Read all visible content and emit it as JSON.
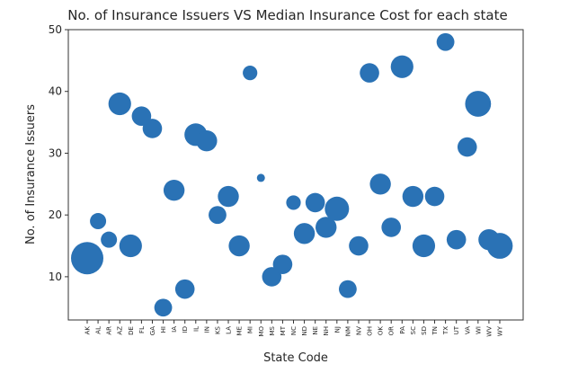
{
  "chart_data": {
    "type": "scatter",
    "title": "No. of Insurance Issuers VS Median Insurance Cost for each state",
    "xlabel": "State Code",
    "ylabel": "No. of Insurance Issuers",
    "ylim": [
      3,
      50
    ],
    "yticks": [
      10,
      20,
      30,
      40,
      50
    ],
    "grid": false,
    "color": "#2a72b5",
    "categories": [
      "AK",
      "AL",
      "AR",
      "AZ",
      "DE",
      "FL",
      "GA",
      "HI",
      "IA",
      "ID",
      "IL",
      "IN",
      "KS",
      "LA",
      "ME",
      "MI",
      "MO",
      "MS",
      "MT",
      "NC",
      "ND",
      "NE",
      "NH",
      "NJ",
      "NM",
      "NV",
      "OH",
      "OK",
      "OR",
      "PA",
      "SC",
      "SD",
      "TN",
      "TX",
      "UT",
      "VA",
      "WI",
      "WV",
      "WY"
    ],
    "points": [
      {
        "x": "AK",
        "y": 13,
        "size": 1.0
      },
      {
        "x": "AL",
        "y": 19,
        "size": 0.5
      },
      {
        "x": "AR",
        "y": 16,
        "size": 0.5
      },
      {
        "x": "AZ",
        "y": 38,
        "size": 0.7
      },
      {
        "x": "DE",
        "y": 15,
        "size": 0.7
      },
      {
        "x": "FL",
        "y": 36,
        "size": 0.6
      },
      {
        "x": "GA",
        "y": 34,
        "size": 0.6
      },
      {
        "x": "HI",
        "y": 5,
        "size": 0.55
      },
      {
        "x": "IA",
        "y": 24,
        "size": 0.65
      },
      {
        "x": "ID",
        "y": 8,
        "size": 0.6
      },
      {
        "x": "IL",
        "y": 33,
        "size": 0.7
      },
      {
        "x": "IN",
        "y": 32,
        "size": 0.65
      },
      {
        "x": "KS",
        "y": 20,
        "size": 0.55
      },
      {
        "x": "LA",
        "y": 23,
        "size": 0.65
      },
      {
        "x": "ME",
        "y": 15,
        "size": 0.65
      },
      {
        "x": "MI",
        "y": 43,
        "size": 0.45
      },
      {
        "x": "MO",
        "y": 26,
        "size": 0.25
      },
      {
        "x": "MS",
        "y": 10,
        "size": 0.6
      },
      {
        "x": "MT",
        "y": 12,
        "size": 0.6
      },
      {
        "x": "NC",
        "y": 22,
        "size": 0.45
      },
      {
        "x": "ND",
        "y": 17,
        "size": 0.65
      },
      {
        "x": "NE",
        "y": 22,
        "size": 0.6
      },
      {
        "x": "NH",
        "y": 18,
        "size": 0.65
      },
      {
        "x": "NJ",
        "y": 21,
        "size": 0.75
      },
      {
        "x": "NM",
        "y": 8,
        "size": 0.55
      },
      {
        "x": "NV",
        "y": 15,
        "size": 0.6
      },
      {
        "x": "OH",
        "y": 43,
        "size": 0.6
      },
      {
        "x": "OK",
        "y": 25,
        "size": 0.65
      },
      {
        "x": "OR",
        "y": 18,
        "size": 0.6
      },
      {
        "x": "PA",
        "y": 44,
        "size": 0.7
      },
      {
        "x": "SC",
        "y": 23,
        "size": 0.65
      },
      {
        "x": "SD",
        "y": 15,
        "size": 0.7
      },
      {
        "x": "TN",
        "y": 23,
        "size": 0.6
      },
      {
        "x": "TX",
        "y": 48,
        "size": 0.55
      },
      {
        "x": "UT",
        "y": 16,
        "size": 0.6
      },
      {
        "x": "VA",
        "y": 31,
        "size": 0.6
      },
      {
        "x": "WI",
        "y": 38,
        "size": 0.8
      },
      {
        "x": "WV",
        "y": 16,
        "size": 0.65
      },
      {
        "x": "WY",
        "y": 15,
        "size": 0.8
      }
    ]
  }
}
